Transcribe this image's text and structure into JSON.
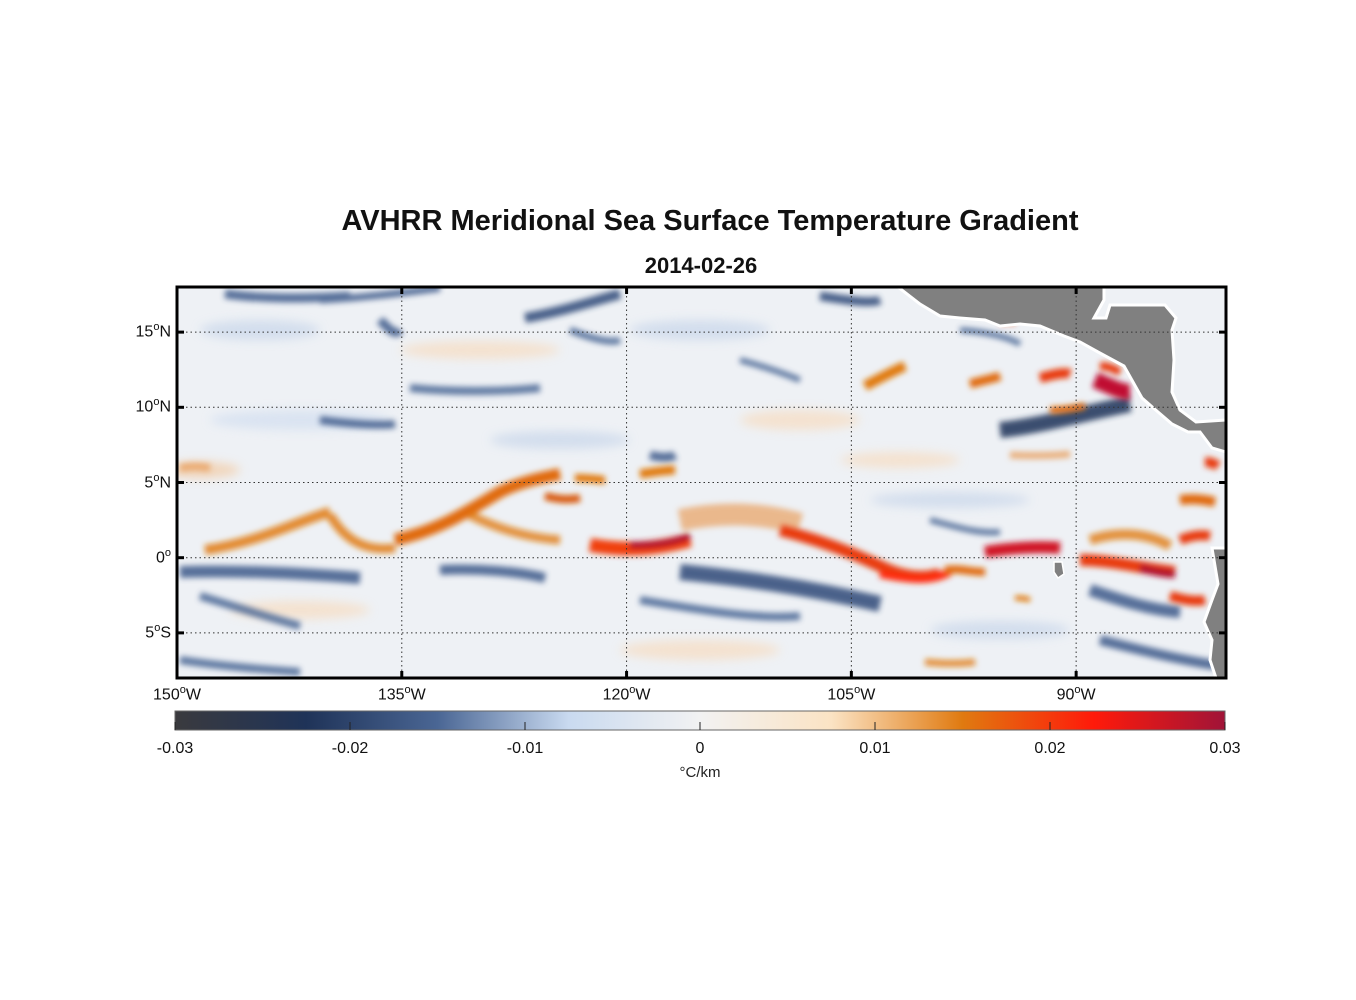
{
  "title": "AVHRR Meridional Sea Surface Temperature Gradient",
  "subtitle": "2014-02-26",
  "map": {
    "lon_range": [
      -150,
      -80
    ],
    "lat_range": [
      -8,
      18
    ],
    "land_color": "#808080",
    "lat_ticks": [
      {
        "value": 15,
        "label": "15",
        "unit": "o",
        "hemi": "N"
      },
      {
        "value": 10,
        "label": "10",
        "unit": "o",
        "hemi": "N"
      },
      {
        "value": 5,
        "label": "5",
        "unit": "o",
        "hemi": "N"
      },
      {
        "value": 0,
        "label": "0",
        "unit": "o",
        "hemi": ""
      },
      {
        "value": -5,
        "label": "5",
        "unit": "o",
        "hemi": "S"
      }
    ],
    "lon_ticks": [
      {
        "value": -150,
        "label": "150",
        "unit": "o",
        "hemi": "W"
      },
      {
        "value": -135,
        "label": "135",
        "unit": "o",
        "hemi": "W"
      },
      {
        "value": -120,
        "label": "120",
        "unit": "o",
        "hemi": "W"
      },
      {
        "value": -105,
        "label": "105",
        "unit": "o",
        "hemi": "W"
      },
      {
        "value": -90,
        "label": "90",
        "unit": "o",
        "hemi": "W"
      }
    ]
  },
  "colorbar": {
    "range": [
      -0.03,
      0.03
    ],
    "tick_values": [
      -0.03,
      -0.02,
      -0.01,
      0,
      0.01,
      0.02,
      0.03
    ],
    "tick_labels": [
      "-0.03",
      "-0.02",
      "-0.01",
      "0",
      "0.01",
      "0.02",
      "0.03"
    ],
    "unit": "°C/km",
    "stops": [
      "#3a3a3e",
      "#1f3358",
      "#4a6694",
      "#c9daf0",
      "#f2f2f2",
      "#fbe3c4",
      "#e07a10",
      "#ff1a0a",
      "#a01438"
    ]
  }
}
